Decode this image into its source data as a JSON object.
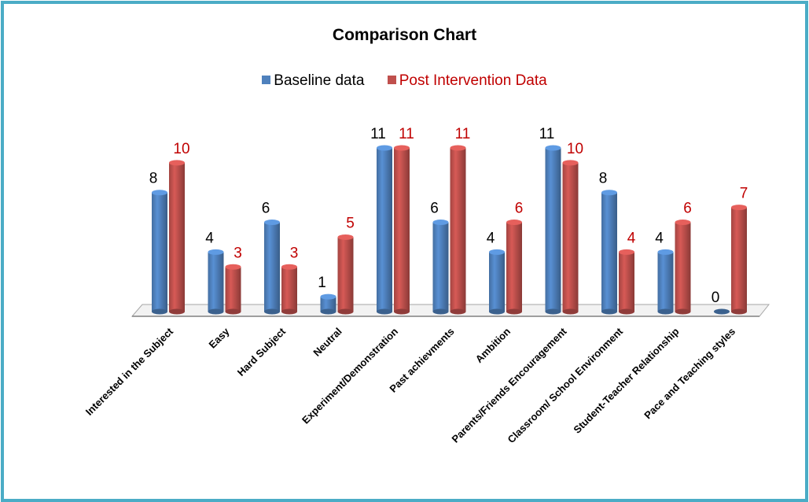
{
  "chart_data": {
    "type": "bar",
    "title": "Comparison Chart",
    "categories": [
      "Interested in the Subject",
      "Easy",
      "Hard Subject",
      "Neutral",
      "Experiment/Demonstration",
      "Past achievments",
      "Ambition",
      "Parents/Friends Encouragement",
      "Classroom/ School Environment",
      "Student-Teacher Relationship",
      "Pace and Teaching styles"
    ],
    "series": [
      {
        "name": "Baseline data",
        "values": [
          8,
          4,
          6,
          1,
          11,
          6,
          4,
          11,
          8,
          4,
          0
        ],
        "color": "#4f81bd",
        "label_color": "#000000"
      },
      {
        "name": "Post Intervention Data",
        "values": [
          10,
          3,
          3,
          5,
          11,
          11,
          6,
          10,
          4,
          6,
          7
        ],
        "color": "#c0504d",
        "label_color": "#c00000"
      }
    ],
    "ylim": [
      0,
      11
    ],
    "legend": "top",
    "grid": false
  }
}
